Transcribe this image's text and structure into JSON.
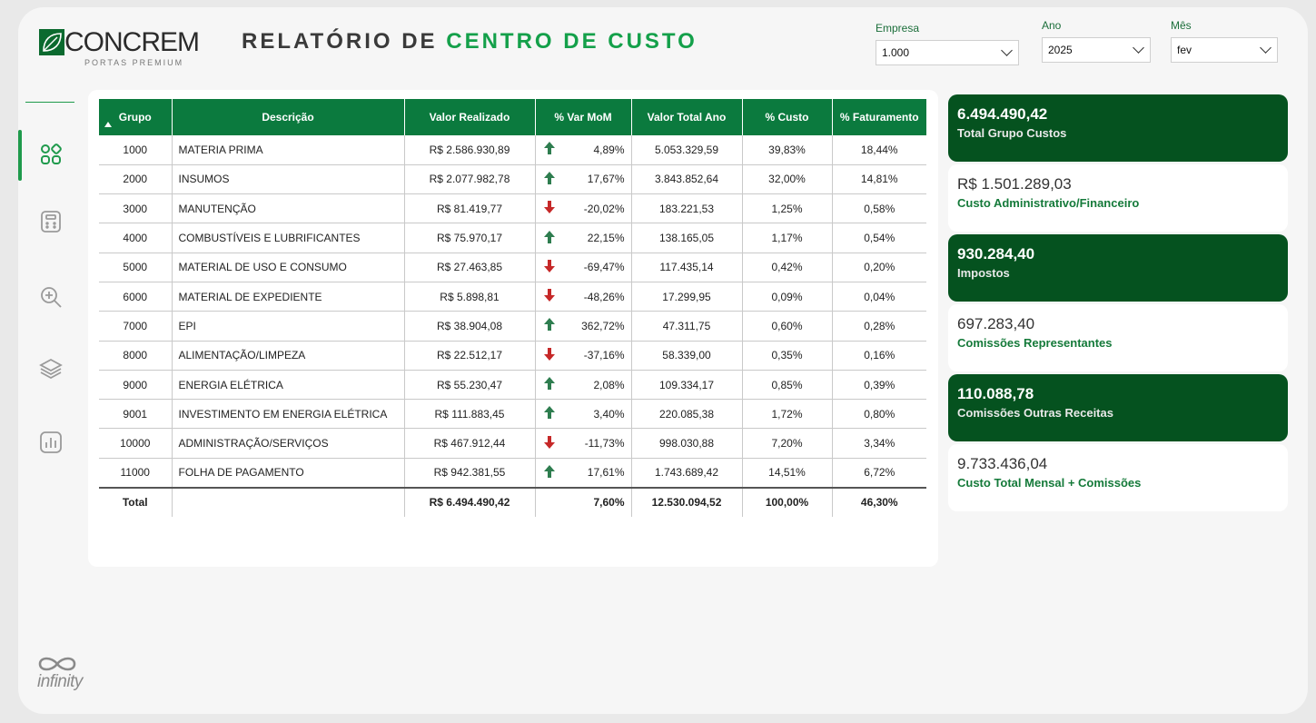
{
  "header": {
    "brand": "CONCREM",
    "brand_sub": "PORTAS PREMIUM",
    "title_part1": "RELATÓRIO DE",
    "title_part2": "CENTRO DE CUSTO"
  },
  "filters": {
    "empresa": {
      "label": "Empresa",
      "value": "1.000"
    },
    "ano": {
      "label": "Ano",
      "value": "2025"
    },
    "mes": {
      "label": "Mês",
      "value": "fev"
    }
  },
  "sidebar": {
    "items": [
      "apps-icon",
      "calculator-icon",
      "zoom-in-icon",
      "layers-icon",
      "bar-chart-icon"
    ],
    "footer_logo": "infinity"
  },
  "table": {
    "columns": [
      "Grupo",
      "Descrição",
      "Valor Realizado",
      "% Var MoM",
      "Valor Total Ano",
      "% Custo",
      "% Faturamento"
    ],
    "rows": [
      {
        "grupo": "1000",
        "descricao": "MATERIA PRIMA",
        "valor": "R$ 2.586.930,89",
        "trend": "up",
        "var": "4,89%",
        "total_ano": "5.053.329,59",
        "custo": "39,83%",
        "fat": "18,44%"
      },
      {
        "grupo": "2000",
        "descricao": "INSUMOS",
        "valor": "R$ 2.077.982,78",
        "trend": "up",
        "var": "17,67%",
        "total_ano": "3.843.852,64",
        "custo": "32,00%",
        "fat": "14,81%"
      },
      {
        "grupo": "3000",
        "descricao": "MANUTENÇÃO",
        "valor": "R$ 81.419,77",
        "trend": "down",
        "var": "-20,02%",
        "total_ano": "183.221,53",
        "custo": "1,25%",
        "fat": "0,58%"
      },
      {
        "grupo": "4000",
        "descricao": "COMBUSTÍVEIS E LUBRIFICANTES",
        "valor": "R$ 75.970,17",
        "trend": "up",
        "var": "22,15%",
        "total_ano": "138.165,05",
        "custo": "1,17%",
        "fat": "0,54%"
      },
      {
        "grupo": "5000",
        "descricao": "MATERIAL DE USO E CONSUMO",
        "valor": "R$ 27.463,85",
        "trend": "down",
        "var": "-69,47%",
        "total_ano": "117.435,14",
        "custo": "0,42%",
        "fat": "0,20%"
      },
      {
        "grupo": "6000",
        "descricao": "MATERIAL DE EXPEDIENTE",
        "valor": "R$ 5.898,81",
        "trend": "down",
        "var": "-48,26%",
        "total_ano": "17.299,95",
        "custo": "0,09%",
        "fat": "0,04%"
      },
      {
        "grupo": "7000",
        "descricao": "EPI",
        "valor": "R$ 38.904,08",
        "trend": "up",
        "var": "362,72%",
        "total_ano": "47.311,75",
        "custo": "0,60%",
        "fat": "0,28%"
      },
      {
        "grupo": "8000",
        "descricao": "ALIMENTAÇÃO/LIMPEZA",
        "valor": "R$ 22.512,17",
        "trend": "down",
        "var": "-37,16%",
        "total_ano": "58.339,00",
        "custo": "0,35%",
        "fat": "0,16%"
      },
      {
        "grupo": "9000",
        "descricao": "ENERGIA ELÉTRICA",
        "valor": "R$ 55.230,47",
        "trend": "up",
        "var": "2,08%",
        "total_ano": "109.334,17",
        "custo": "0,85%",
        "fat": "0,39%"
      },
      {
        "grupo": "9001",
        "descricao": "INVESTIMENTO EM ENERGIA ELÉTRICA",
        "valor": "R$ 111.883,45",
        "trend": "up",
        "var": "3,40%",
        "total_ano": "220.085,38",
        "custo": "1,72%",
        "fat": "0,80%"
      },
      {
        "grupo": "10000",
        "descricao": "ADMINISTRAÇÃO/SERVIÇOS",
        "valor": "R$ 467.912,44",
        "trend": "down",
        "var": "-11,73%",
        "total_ano": "998.030,88",
        "custo": "7,20%",
        "fat": "3,34%"
      },
      {
        "grupo": "11000",
        "descricao": "FOLHA DE PAGAMENTO",
        "valor": "R$ 942.381,55",
        "trend": "up",
        "var": "17,61%",
        "total_ano": "1.743.689,42",
        "custo": "14,51%",
        "fat": "6,72%"
      }
    ],
    "total": {
      "label": "Total",
      "valor": "R$ 6.494.490,42",
      "var": "7,60%",
      "total_ano": "12.530.094,52",
      "custo": "100,00%",
      "fat": "46,30%"
    }
  },
  "kpis": [
    {
      "value": "6.494.490,42",
      "title": "Total Grupo Custos",
      "style": "dark"
    },
    {
      "value": "R$ 1.501.289,03",
      "title": "Custo Administrativo/Financeiro",
      "style": "light"
    },
    {
      "value": "930.284,40",
      "title": "Impostos",
      "style": "dark"
    },
    {
      "value": "697.283,40",
      "title": "Comissões Representantes",
      "style": "light"
    },
    {
      "value": "110.088,78",
      "title": "Comissões Outras Receitas",
      "style": "dark"
    },
    {
      "value": "9.733.436,04",
      "title": "Custo Total Mensal + Comissões",
      "style": "light"
    }
  ],
  "colors": {
    "brand_green": "#0b7a3e",
    "accent_green": "#14a04a",
    "dark_green": "#05521f",
    "up": "#2e7d4f",
    "down": "#c62828"
  }
}
